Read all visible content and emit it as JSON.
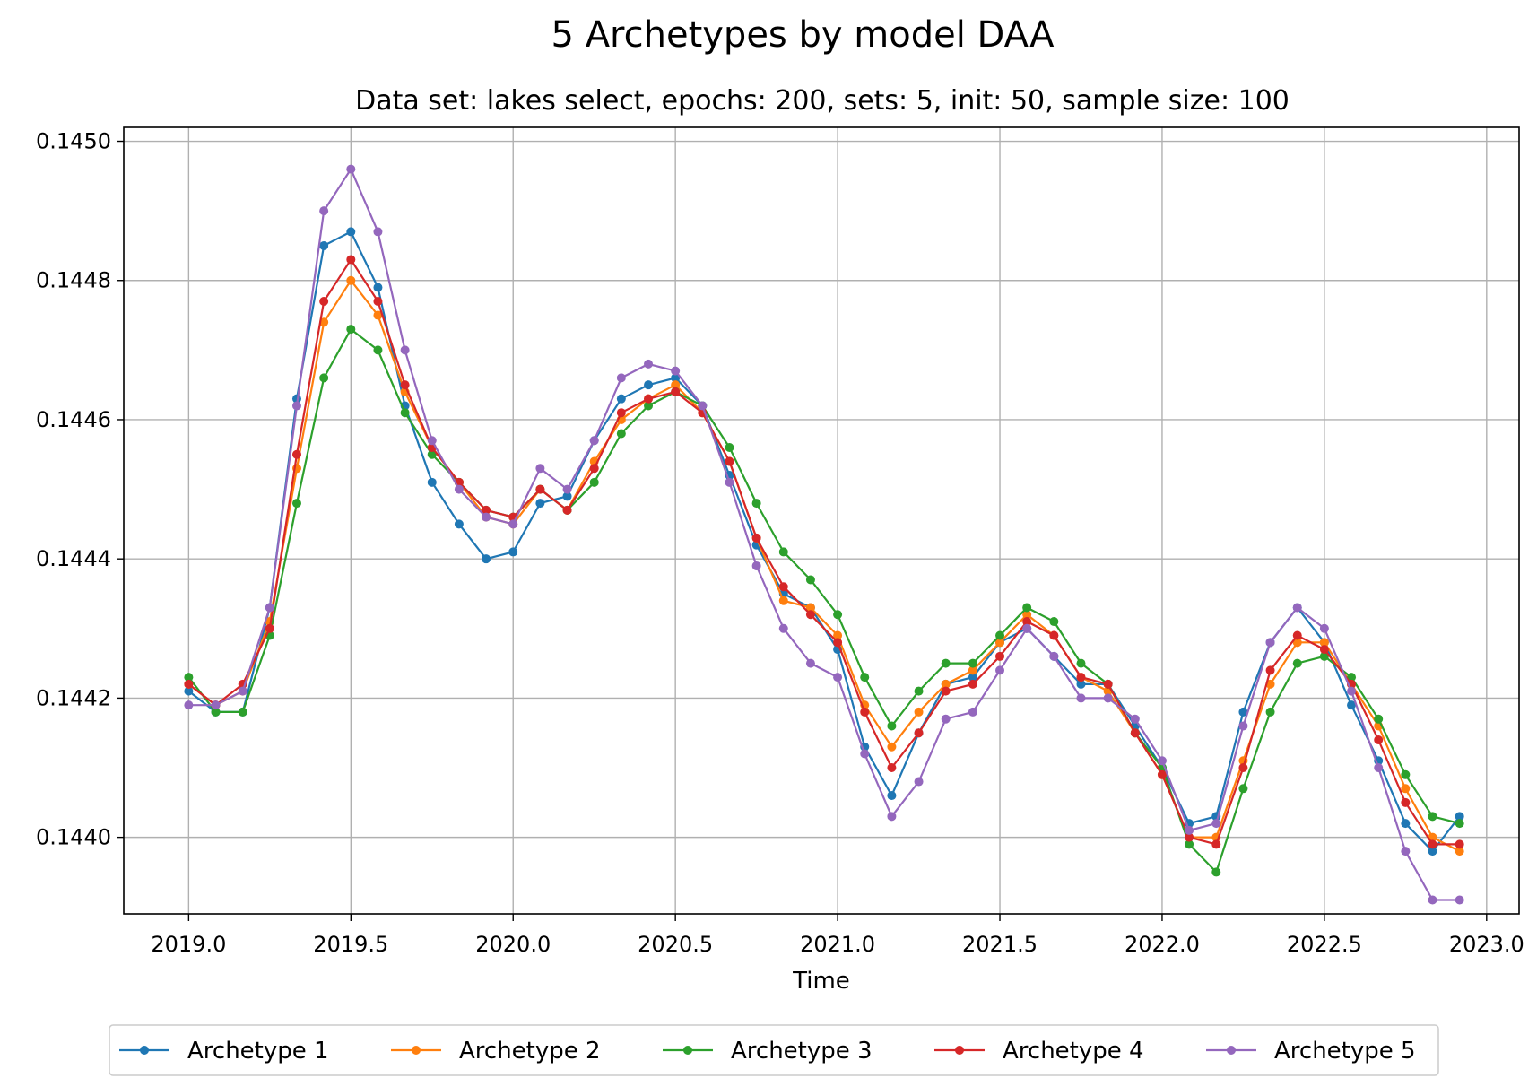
{
  "chart_data": {
    "type": "line",
    "title": "5 Archetypes by model DAA",
    "subtitle": "Data set: lakes select, epochs: 200, sets: 5, init: 50, sample size: 100",
    "xlabel": "Time",
    "ylabel": "",
    "xlim": [
      2018.8,
      2023.1
    ],
    "ylim": [
      0.14389,
      0.14502
    ],
    "x_ticks": [
      "2019.0",
      "2019.5",
      "2020.0",
      "2020.5",
      "2021.0",
      "2021.5",
      "2022.0",
      "2022.5",
      "2023.0"
    ],
    "y_ticks": [
      "0.1440",
      "0.1442",
      "0.1444",
      "0.1446",
      "0.1448",
      "0.1450"
    ],
    "grid": true,
    "legend_position": "bottom-center",
    "x": [
      2019.0,
      2019.0833,
      2019.1667,
      2019.25,
      2019.3333,
      2019.4167,
      2019.5,
      2019.5833,
      2019.6667,
      2019.75,
      2019.8333,
      2019.9167,
      2020.0,
      2020.0833,
      2020.1667,
      2020.25,
      2020.3333,
      2020.4167,
      2020.5,
      2020.5833,
      2020.6667,
      2020.75,
      2020.8333,
      2020.9167,
      2021.0,
      2021.0833,
      2021.1667,
      2021.25,
      2021.3333,
      2021.4167,
      2021.5,
      2021.5833,
      2021.6667,
      2021.75,
      2021.8333,
      2021.9167,
      2022.0,
      2022.0833,
      2022.1667,
      2022.25,
      2022.3333,
      2022.4167,
      2022.5,
      2022.5833,
      2022.6667,
      2022.75,
      2022.8333,
      2022.9167
    ],
    "series": [
      {
        "name": "Archetype 1",
        "color": "#1f77b4",
        "values": [
          0.14421,
          0.14418,
          0.14418,
          0.14433,
          0.14463,
          0.14485,
          0.14487,
          0.14479,
          0.14462,
          0.14451,
          0.14445,
          0.1444,
          0.14441,
          0.14448,
          0.14449,
          0.14457,
          0.14463,
          0.14465,
          0.14466,
          0.14462,
          0.14452,
          0.14442,
          0.14435,
          0.14433,
          0.14427,
          0.14413,
          0.14406,
          0.14415,
          0.14422,
          0.14423,
          0.14428,
          0.1443,
          0.14426,
          0.14422,
          0.14422,
          0.14416,
          0.1441,
          0.14402,
          0.14403,
          0.14418,
          0.14428,
          0.14433,
          0.14428,
          0.14419,
          0.14411,
          0.14402,
          0.14398,
          0.14403
        ]
      },
      {
        "name": "Archetype 2",
        "color": "#ff7f0e",
        "values": [
          0.14422,
          0.14419,
          0.14421,
          0.14431,
          0.14453,
          0.14474,
          0.1448,
          0.14475,
          0.14464,
          0.14456,
          0.14451,
          0.14446,
          0.14445,
          0.1445,
          0.14447,
          0.14454,
          0.1446,
          0.14463,
          0.14465,
          0.14461,
          0.14454,
          0.14443,
          0.14434,
          0.14433,
          0.14429,
          0.14419,
          0.14413,
          0.14418,
          0.14422,
          0.14424,
          0.14428,
          0.14432,
          0.14429,
          0.14423,
          0.14421,
          0.14415,
          0.14409,
          0.144,
          0.144,
          0.14411,
          0.14422,
          0.14428,
          0.14428,
          0.14422,
          0.14416,
          0.14407,
          0.144,
          0.14398
        ]
      },
      {
        "name": "Archetype 3",
        "color": "#2ca02c",
        "values": [
          0.14423,
          0.14418,
          0.14418,
          0.14429,
          0.14448,
          0.14466,
          0.14473,
          0.1447,
          0.14461,
          0.14455,
          0.14451,
          0.14447,
          0.14446,
          0.1445,
          0.14447,
          0.14451,
          0.14458,
          0.14462,
          0.14464,
          0.14462,
          0.14456,
          0.14448,
          0.14441,
          0.14437,
          0.14432,
          0.14423,
          0.14416,
          0.14421,
          0.14425,
          0.14425,
          0.14429,
          0.14433,
          0.14431,
          0.14425,
          0.14422,
          0.14415,
          0.1441,
          0.14399,
          0.14395,
          0.14407,
          0.14418,
          0.14425,
          0.14426,
          0.14423,
          0.14417,
          0.14409,
          0.14403,
          0.14402
        ]
      },
      {
        "name": "Archetype 4",
        "color": "#d62728",
        "values": [
          0.14422,
          0.14419,
          0.14422,
          0.1443,
          0.14455,
          0.14477,
          0.14483,
          0.14477,
          0.14465,
          0.14456,
          0.14451,
          0.14447,
          0.14446,
          0.1445,
          0.14447,
          0.14453,
          0.14461,
          0.14463,
          0.14464,
          0.14461,
          0.14454,
          0.14443,
          0.14436,
          0.14432,
          0.14428,
          0.14418,
          0.1441,
          0.14415,
          0.14421,
          0.14422,
          0.14426,
          0.14431,
          0.14429,
          0.14423,
          0.14422,
          0.14415,
          0.14409,
          0.144,
          0.14399,
          0.1441,
          0.14424,
          0.14429,
          0.14427,
          0.14422,
          0.14414,
          0.14405,
          0.14399,
          0.14399
        ]
      },
      {
        "name": "Archetype 5",
        "color": "#9467bd",
        "values": [
          0.14419,
          0.14419,
          0.14421,
          0.14433,
          0.14462,
          0.1449,
          0.14496,
          0.14487,
          0.1447,
          0.14457,
          0.1445,
          0.14446,
          0.14445,
          0.14453,
          0.1445,
          0.14457,
          0.14466,
          0.14468,
          0.14467,
          0.14462,
          0.14451,
          0.14439,
          0.1443,
          0.14425,
          0.14423,
          0.14412,
          0.14403,
          0.14408,
          0.14417,
          0.14418,
          0.14424,
          0.1443,
          0.14426,
          0.1442,
          0.1442,
          0.14417,
          0.14411,
          0.14401,
          0.14402,
          0.14416,
          0.14428,
          0.14433,
          0.1443,
          0.14421,
          0.1441,
          0.14398,
          0.14391,
          0.14391
        ]
      }
    ]
  }
}
